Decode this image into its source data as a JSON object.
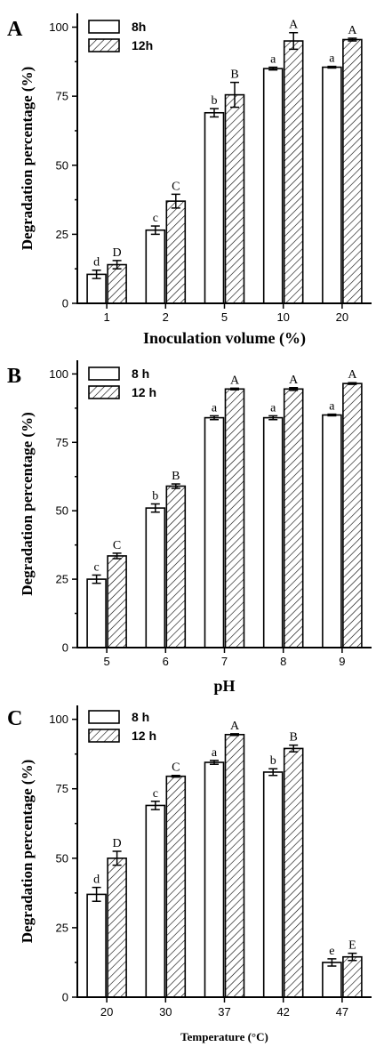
{
  "chart_data": [
    {
      "panel": "A",
      "type": "bar",
      "xlabel": "Inoculation volume (%)",
      "ylabel": "Degradation percentage (%)",
      "ylim": [
        0,
        105
      ],
      "yticks": [
        0,
        25,
        50,
        75,
        100
      ],
      "categories": [
        "1",
        "2",
        "5",
        "10",
        "20"
      ],
      "legend_position": "top-left",
      "series": [
        {
          "name": "8h",
          "pattern": "open",
          "values": [
            10.5,
            26.5,
            69,
            85,
            85.5
          ],
          "errors": [
            1.5,
            1.5,
            1.5,
            0.5,
            0.3
          ],
          "labels": [
            "d",
            "c",
            "b",
            "a",
            "a"
          ]
        },
        {
          "name": "12h",
          "pattern": "hatched",
          "values": [
            14,
            37,
            75.5,
            95,
            95.5
          ],
          "errors": [
            1.5,
            2.5,
            4.5,
            3,
            0.5
          ],
          "labels": [
            "D",
            "C",
            "B",
            "A",
            "A"
          ]
        }
      ]
    },
    {
      "panel": "B",
      "type": "bar",
      "xlabel": "pH",
      "ylabel": "Degradation percentage (%)",
      "ylim": [
        0,
        105
      ],
      "yticks": [
        0,
        25,
        50,
        75,
        100
      ],
      "categories": [
        "5",
        "6",
        "7",
        "8",
        "9"
      ],
      "legend_position": "top-left",
      "series": [
        {
          "name": "8 h",
          "pattern": "open",
          "values": [
            25,
            51,
            84,
            84,
            85
          ],
          "errors": [
            1.5,
            1.5,
            0.7,
            0.7,
            0.3
          ],
          "labels": [
            "c",
            "b",
            "a",
            "a",
            "a"
          ]
        },
        {
          "name": "12 h",
          "pattern": "hatched",
          "values": [
            33.5,
            59,
            94.5,
            94.5,
            96.5
          ],
          "errors": [
            1,
            0.8,
            0.3,
            0.5,
            0.3
          ],
          "labels": [
            "C",
            "B",
            "A",
            "A",
            "A"
          ]
        }
      ]
    },
    {
      "panel": "C",
      "type": "bar",
      "xlabel": "Temperature (°C)",
      "ylabel": "Degradation percentage (%)",
      "ylim": [
        0,
        105
      ],
      "yticks": [
        0,
        25,
        50,
        75,
        100
      ],
      "categories": [
        "20",
        "30",
        "37",
        "42",
        "47"
      ],
      "legend_position": "top-left",
      "series": [
        {
          "name": "8 h",
          "pattern": "open",
          "values": [
            37,
            69,
            84.5,
            81,
            12.5
          ],
          "errors": [
            2.5,
            1.5,
            0.7,
            1.2,
            1.3
          ],
          "labels": [
            "d",
            "c",
            "a",
            "b",
            "e"
          ]
        },
        {
          "name": "12 h",
          "pattern": "hatched",
          "values": [
            50,
            79.5,
            94.5,
            89.5,
            14.5
          ],
          "errors": [
            2.5,
            0.3,
            0.3,
            1.2,
            1.3
          ],
          "labels": [
            "D",
            "C",
            "A",
            "B",
            "E"
          ]
        }
      ]
    }
  ]
}
